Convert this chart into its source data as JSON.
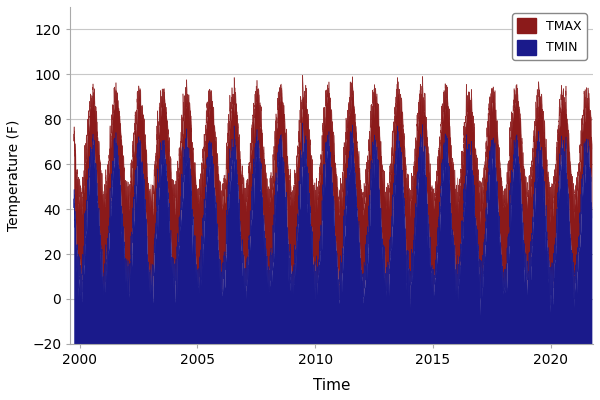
{
  "title": "",
  "xlabel": "Time",
  "ylabel": "Temperature (F)",
  "xlim": [
    1999.6,
    2021.8
  ],
  "ylim": [
    -20,
    130
  ],
  "yticks": [
    -20,
    0,
    20,
    40,
    60,
    80,
    100,
    120
  ],
  "xticks": [
    2000,
    2005,
    2010,
    2015,
    2020
  ],
  "tmax_color": "#8B1A1A",
  "tmin_color": "#1A1A8B",
  "legend_labels": [
    "TMAX",
    "TMIN"
  ],
  "background_color": "#ffffff",
  "grid_color": "#c8c8c8",
  "figsize": [
    6.0,
    4.0
  ],
  "dpi": 100,
  "start_decimal_year": 1999.75,
  "n_days": 8036,
  "tmax_summer_peak": 90,
  "tmax_winter_trough": 45,
  "tmin_summer_peak": 68,
  "tmin_winter_trough": 10,
  "tmax_noise_std": 7,
  "tmin_noise_std": 9
}
